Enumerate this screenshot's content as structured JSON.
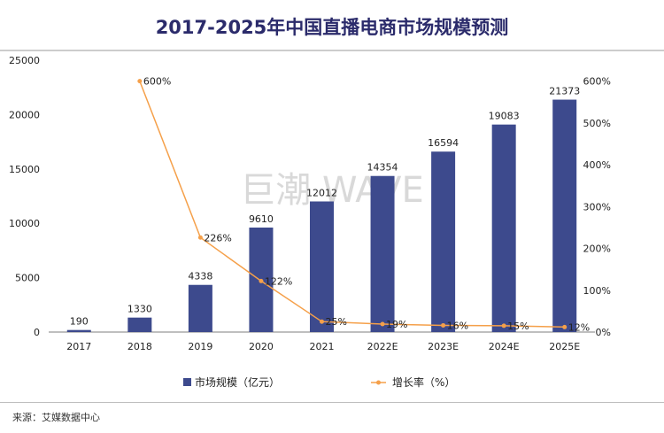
{
  "chart_data": {
    "type": "bar+line",
    "title": "2017-2025年中国直播电商市场规模预测",
    "categories": [
      "2017",
      "2018",
      "2019",
      "2020",
      "2021",
      "2022E",
      "2023E",
      "2024E",
      "2025E"
    ],
    "series": [
      {
        "name": "市场规模（亿元）",
        "type": "bar",
        "axis": "left",
        "color": "#3d4a8d",
        "values": [
          190,
          1330,
          4338,
          9610,
          12012,
          14354,
          16594,
          19083,
          21373
        ],
        "labels": [
          "190",
          "1330",
          "4338",
          "9610",
          "12012",
          "14354",
          "16594",
          "19083",
          "21373"
        ]
      },
      {
        "name": "增长率（%）",
        "type": "line",
        "axis": "right",
        "color": "#f5a04a",
        "values": [
          null,
          600,
          226,
          122,
          25,
          19,
          16,
          15,
          12
        ],
        "labels": [
          null,
          "600%",
          "226%",
          "122%",
          "25%",
          "19%",
          "16%",
          "15%",
          "12%"
        ]
      }
    ],
    "y_left": {
      "range": [
        0,
        25000
      ],
      "ticks": [
        "0",
        "5000",
        "10000",
        "15000",
        "20000",
        "25000"
      ]
    },
    "y_right": {
      "range": [
        0,
        650
      ],
      "ticks": [
        "0%",
        "100%",
        "200%",
        "300%",
        "400%",
        "500%",
        "600%"
      ]
    },
    "legend": {
      "position": "bottom"
    },
    "watermark": "巨潮 WAVE"
  },
  "source": "来源：艾媒数据中心"
}
